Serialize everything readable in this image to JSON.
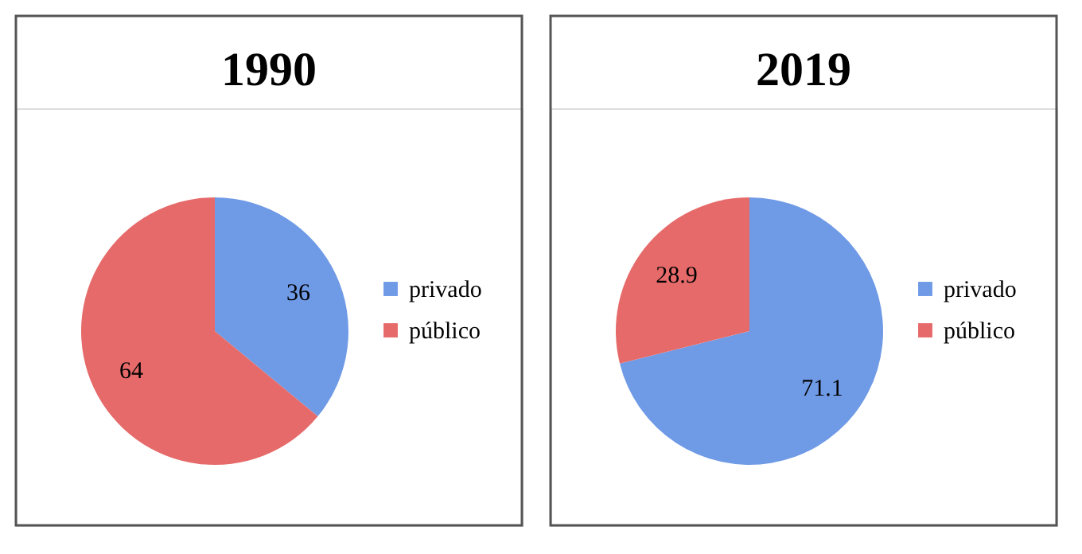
{
  "chart_data": [
    {
      "type": "pie",
      "title": "1990",
      "categories": [
        "privado",
        "público"
      ],
      "values": [
        36,
        64
      ],
      "colors": [
        "#6f9ae6",
        "#e66a6a"
      ],
      "data_labels": true,
      "legend": "right"
    },
    {
      "type": "pie",
      "title": "2019",
      "categories": [
        "privado",
        "público"
      ],
      "values": [
        71.1,
        28.9
      ],
      "colors": [
        "#6f9ae6",
        "#e66a6a"
      ],
      "data_labels": true,
      "legend": "right"
    }
  ]
}
